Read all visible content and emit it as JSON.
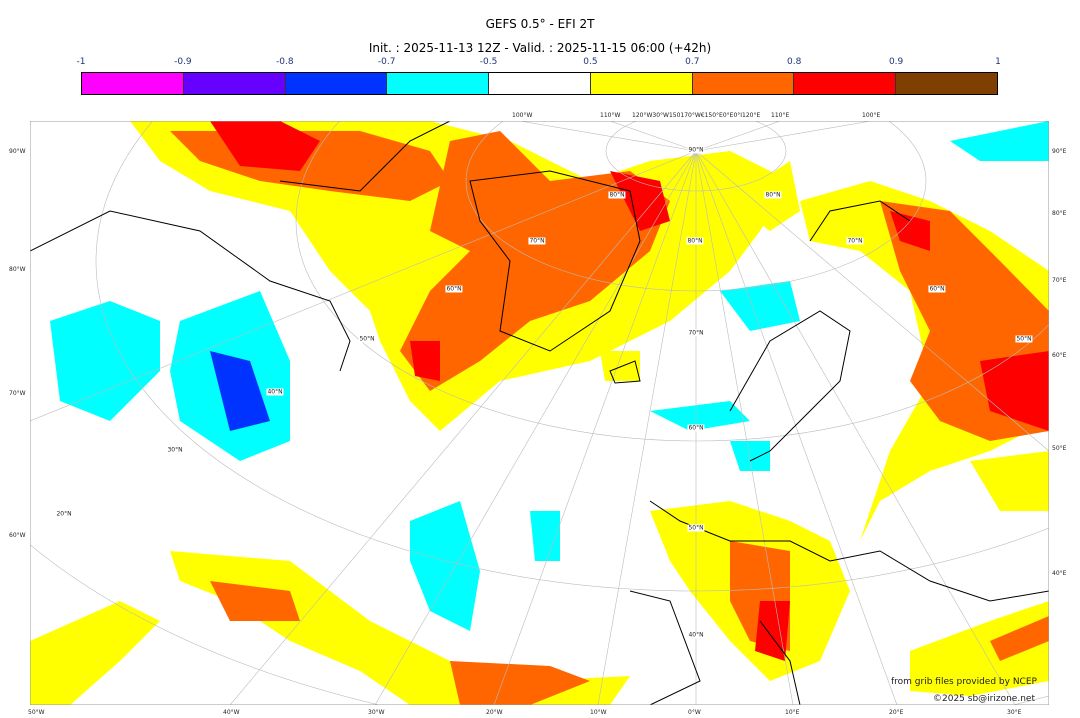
{
  "title": "GEFS 0.5° - EFI 2T",
  "subtitle": "Init. : 2025-11-13 12Z - Valid. : 2025-11-15 06:00 (+42h)",
  "colorbar": {
    "ticks": [
      "-1",
      "-0.9",
      "-0.8",
      "-0.7",
      "-0.5",
      "0.5",
      "0.7",
      "0.8",
      "0.9",
      "1"
    ],
    "colors": [
      "#ff00ff",
      "#6600ff",
      "#0033ff",
      "#00ffff",
      "#ffffff",
      "#ffff00",
      "#ff6600",
      "#ff0000",
      "#7f3f00"
    ]
  },
  "axes": {
    "left": [
      "90°W",
      "80°W",
      "70°W",
      "60°W"
    ],
    "right": [
      "90°E",
      "80°E",
      "70°E",
      "60°E",
      "50°E",
      "40°E"
    ],
    "top": [
      "100°W",
      "110°W",
      "120°W30°W150170°W€150°E0°E0°I120°E",
      "110°E",
      "100°E"
    ],
    "bottom": [
      "50°W",
      "40°W",
      "30°W",
      "20°W",
      "10°W",
      "0°W",
      "10°E",
      "20°E",
      "30°E"
    ],
    "inner": [
      "90°N",
      "80°N",
      "80°N",
      "70°N",
      "80°N",
      "70°N",
      "60°N",
      "60°N",
      "50°N",
      "70°N",
      "50°N",
      "40°N",
      "60°N",
      "30°N",
      "20°N",
      "50°N",
      "40°N"
    ]
  },
  "credits": {
    "source": "from grib files provided by NCEP",
    "copyright": "©2025 sb@irizone.net"
  }
}
